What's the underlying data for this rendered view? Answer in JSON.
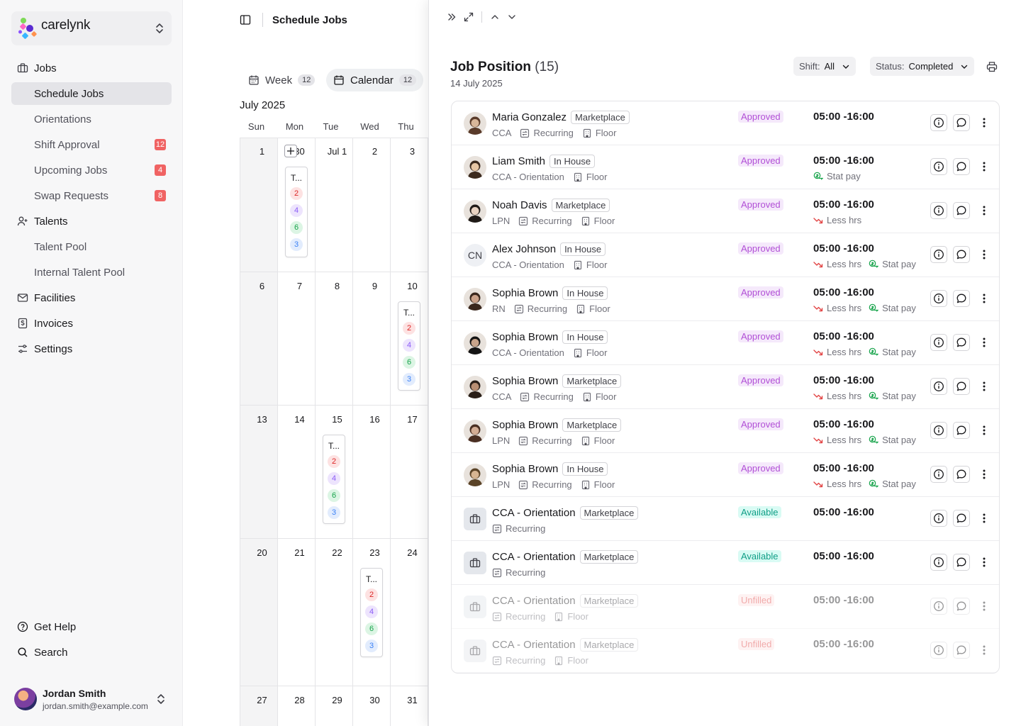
{
  "brand": {
    "name": "carelynk"
  },
  "sidebar": {
    "groups": [
      {
        "label": "Jobs"
      },
      {
        "label": "Talents"
      },
      {
        "label": "Facilities"
      },
      {
        "label": "Invoices"
      },
      {
        "label": "Settings"
      }
    ],
    "jobs_items": [
      {
        "label": "Schedule Jobs",
        "badge": ""
      },
      {
        "label": "Orientations",
        "badge": ""
      },
      {
        "label": "Shift Approval",
        "badge": "12"
      },
      {
        "label": "Upcoming Jobs",
        "badge": "4"
      },
      {
        "label": "Swap Requests",
        "badge": "8"
      }
    ],
    "talents_items": [
      {
        "label": "Talent Pool"
      },
      {
        "label": "Internal Talent Pool"
      }
    ],
    "footer": {
      "help": "Get Help",
      "search": "Search"
    },
    "user": {
      "name": "Jordan Smith",
      "email": "jordan.smith@example.com"
    }
  },
  "header": {
    "title": "Schedule Jobs"
  },
  "view_tabs": [
    {
      "label": "Week",
      "count": "12"
    },
    {
      "label": "Calendar",
      "count": "12"
    }
  ],
  "calendar": {
    "month": "July 2025",
    "weekdays": [
      "Sun",
      "Mon",
      "Tue",
      "Wed",
      "Thu"
    ],
    "weeks": [
      [
        "1",
        "30",
        "Jul 1",
        "2",
        "3"
      ],
      [
        "6",
        "7",
        "8",
        "9",
        "10"
      ],
      [
        "13",
        "14",
        "15",
        "16",
        "17"
      ],
      [
        "20",
        "21",
        "22",
        "23",
        "24"
      ],
      [
        "27",
        "28",
        "29",
        "30",
        "31"
      ]
    ],
    "event_card": {
      "title": "T...",
      "counts": [
        "2",
        "4",
        "6",
        "3"
      ]
    }
  },
  "panel": {
    "title": "Job Position",
    "count": "(15)",
    "date": "14 July 2025",
    "shift_filter": {
      "label": "Shift:",
      "value": "All"
    },
    "status_filter": {
      "label": "Status:",
      "value": "Completed"
    },
    "rows": [
      {
        "name": "Maria Gonzalez",
        "tag": "Marketplace",
        "role": "CCA",
        "recurring": "Recurring",
        "floor": "Floor",
        "status": "Approved",
        "time": "05:00 -16:00",
        "less": "",
        "stat": ""
      },
      {
        "name": "Liam Smith",
        "tag": "In House",
        "role": "CCA - Orientation",
        "recurring": "",
        "floor": "Floor",
        "status": "Approved",
        "time": "05:00 -16:00",
        "less": "",
        "stat": "Stat pay"
      },
      {
        "name": "Noah Davis",
        "tag": "Marketplace",
        "role": "LPN",
        "recurring": "Recurring",
        "floor": "Floor",
        "status": "Approved",
        "time": "05:00 -16:00",
        "less": "Less hrs",
        "stat": ""
      },
      {
        "name": "Alex Johnson",
        "tag": "In House",
        "role": "CCA - Orientation",
        "recurring": "",
        "floor": "Floor",
        "status": "Approved",
        "time": "05:00 -16:00",
        "less": "Less hrs",
        "stat": "Stat pay",
        "initials": "CN"
      },
      {
        "name": "Sophia Brown",
        "tag": "In House",
        "role": "RN",
        "recurring": "Recurring",
        "floor": "Floor",
        "status": "Approved",
        "time": "05:00 -16:00",
        "less": "Less hrs",
        "stat": "Stat pay"
      },
      {
        "name": "Sophia Brown",
        "tag": "In House",
        "role": "CCA - Orientation",
        "recurring": "",
        "floor": "Floor",
        "status": "Approved",
        "time": "05:00 -16:00",
        "less": "Less hrs",
        "stat": "Stat pay"
      },
      {
        "name": "Sophia Brown",
        "tag": "Marketplace",
        "role": "CCA",
        "recurring": "Recurring",
        "floor": "Floor",
        "status": "Approved",
        "time": "05:00 -16:00",
        "less": "Less hrs",
        "stat": "Stat pay"
      },
      {
        "name": "Sophia Brown",
        "tag": "Marketplace",
        "role": "LPN",
        "recurring": "Recurring",
        "floor": "Floor",
        "status": "Approved",
        "time": "05:00 -16:00",
        "less": "Less hrs",
        "stat": "Stat pay"
      },
      {
        "name": "Sophia Brown",
        "tag": "In House",
        "role": "LPN",
        "recurring": "Recurring",
        "floor": "Floor",
        "status": "Approved",
        "time": "05:00 -16:00",
        "less": "Less hrs",
        "stat": "Stat pay"
      },
      {
        "name": "CCA - Orientation",
        "tag": "Marketplace",
        "role": "",
        "recurring": "Recurring",
        "floor": "",
        "status": "Available",
        "time": "05:00 -16:00",
        "less": "",
        "stat": ""
      },
      {
        "name": "CCA - Orientation",
        "tag": "Marketplace",
        "role": "",
        "recurring": "Recurring",
        "floor": "",
        "status": "Available",
        "time": "05:00 -16:00",
        "less": "",
        "stat": ""
      },
      {
        "name": "CCA - Orientation",
        "tag": "Marketplace",
        "role": "",
        "recurring": "Recurring",
        "floor": "Floor",
        "status": "Unfilled",
        "time": "05:00 -16:00",
        "less": "",
        "stat": ""
      },
      {
        "name": "CCA - Orientation",
        "tag": "Marketplace",
        "role": "",
        "recurring": "Recurring",
        "floor": "Floor",
        "status": "Unfilled",
        "time": "05:00 -16:00",
        "less": "",
        "stat": ""
      }
    ]
  }
}
